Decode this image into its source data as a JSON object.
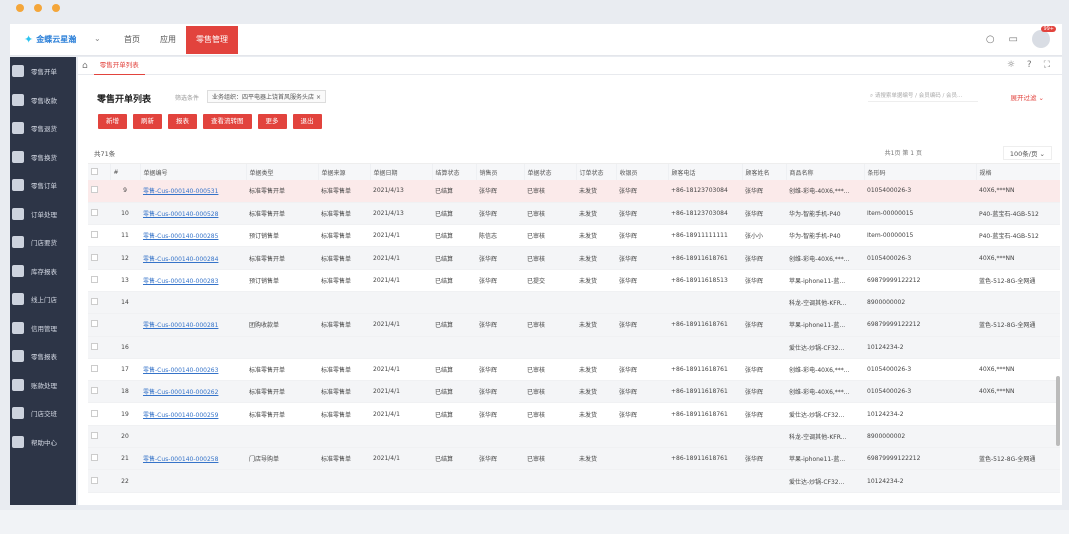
{
  "topbar": {
    "logo": "金蝶云星瀚",
    "nav": [
      "首页",
      "应用",
      "零售管理"
    ],
    "active_nav": 2,
    "notification_count": "99+"
  },
  "sidebar": {
    "items": [
      "零售开单",
      "零售收款",
      "零售退货",
      "零售换货",
      "零售订单",
      "订单处理",
      "门店要货",
      "库存报表",
      "线上门店",
      "信用管理",
      "零售报表",
      "账款处理",
      "门店交班",
      "帮助中心"
    ]
  },
  "tabs": {
    "active": "零售开单列表"
  },
  "page": {
    "title": "零售开单列表",
    "filter_label": "筛选条件",
    "filter_chip": "业务组织：四平电器上饶首风服务头店",
    "search_placeholder": "请搜索单据编号 / 会员编码 / 会员...",
    "expand_label": "展开过滤"
  },
  "toolbar": {
    "buttons": [
      "新增",
      "刷新",
      "报表",
      "查看流转图",
      "更多",
      "退出"
    ]
  },
  "list": {
    "total": "共71条",
    "pager_text": "共1页  第 1 页",
    "page_size": "100条/页"
  },
  "columns": [
    "",
    "#",
    "单据编号",
    "单据类型",
    "单据来源",
    "单据日期",
    "结算状态",
    "销售员",
    "单据状态",
    "订单状态",
    "收银员",
    "顾客电话",
    "顾客姓名",
    "商品名称",
    "条形码",
    "规格"
  ],
  "rows": [
    {
      "n": "9",
      "no": "零售-Cus-000140-000531",
      "type": "标准零售开单",
      "src": "标准零售单",
      "date": "2021/4/13",
      "settle": "已结算",
      "seller": "张华辉",
      "status": "已审核",
      "order": "未发货",
      "cashier": "张华辉",
      "phone": "+86-18123703084",
      "cust": "张华辉",
      "goods": "创维-彩电-40X6,***...",
      "code": "0105400026-3",
      "spec": "40X6,***NN",
      "style": "hl"
    },
    {
      "n": "10",
      "no": "零售-Cus-000140-000528",
      "type": "标准零售开单",
      "src": "标准零售单",
      "date": "2021/4/13",
      "settle": "已结算",
      "seller": "张华辉",
      "status": "已审核",
      "order": "未发货",
      "cashier": "张华辉",
      "phone": "+86-18123703084",
      "cust": "张华辉",
      "goods": "华为-智能手机-P40",
      "code": "Item-00000015",
      "spec": "P40-蓝宝石-4GB-512",
      "style": "stripe"
    },
    {
      "n": "11",
      "no": "零售-Cus-000140-000285",
      "type": "预订销售单",
      "src": "标准零售单",
      "date": "2021/4/1",
      "settle": "已结算",
      "seller": "陈信志",
      "status": "已审核",
      "order": "未发货",
      "cashier": "张华辉",
      "phone": "+86-18911111111",
      "cust": "张小小",
      "goods": "华为-智能手机-P40",
      "code": "Item-00000015",
      "spec": "P40-蓝宝石-4GB-512",
      "style": ""
    },
    {
      "n": "12",
      "no": "零售-Cus-000140-000284",
      "type": "标准零售开单",
      "src": "标准零售单",
      "date": "2021/4/1",
      "settle": "已结算",
      "seller": "张华辉",
      "status": "已审核",
      "order": "未发货",
      "cashier": "张华辉",
      "phone": "+86-18911618761",
      "cust": "张华辉",
      "goods": "创维-彩电-40X6,***...",
      "code": "0105400026-3",
      "spec": "40X6,***NN",
      "style": "stripe"
    },
    {
      "n": "13",
      "no": "零售-Cus-000140-000283",
      "type": "预订销售单",
      "src": "标准零售单",
      "date": "2021/4/1",
      "settle": "已结算",
      "seller": "张华辉",
      "status": "已提交",
      "order": "未发货",
      "cashier": "张华辉",
      "phone": "+86-18911618513",
      "cust": "张华辉",
      "goods": "苹果-iphone11-蓝...",
      "code": "69879999122212",
      "spec": "蓝色-512-8G-全网通",
      "style": ""
    },
    {
      "n": "14",
      "no": "",
      "type": "",
      "src": "",
      "date": "",
      "settle": "",
      "seller": "",
      "status": "",
      "order": "",
      "cashier": "",
      "phone": "",
      "cust": "",
      "goods": "科龙-空调其他-KFR...",
      "code": "8900000002",
      "spec": "",
      "style": "stripe"
    },
    {
      "n": "",
      "no": "零售-Cus-000140-000281",
      "type": "团购收款单",
      "src": "标准零售单",
      "date": "2021/4/1",
      "settle": "已结算",
      "seller": "张华辉",
      "status": "已审核",
      "order": "未发货",
      "cashier": "张华辉",
      "phone": "+86-18911618761",
      "cust": "张华辉",
      "goods": "苹果-iphone11-蓝...",
      "code": "69879999122212",
      "spec": "蓝色-512-8G-全网通",
      "style": "stripe"
    },
    {
      "n": "16",
      "no": "",
      "type": "",
      "src": "",
      "date": "",
      "settle": "",
      "seller": "",
      "status": "",
      "order": "",
      "cashier": "",
      "phone": "",
      "cust": "",
      "goods": "爱仕达-炒锅-CF32...",
      "code": "10124234-2",
      "spec": "",
      "style": "stripe"
    },
    {
      "n": "17",
      "no": "零售-Cus-000140-000263",
      "type": "标准零售开单",
      "src": "标准零售单",
      "date": "2021/4/1",
      "settle": "已结算",
      "seller": "张华辉",
      "status": "已审核",
      "order": "未发货",
      "cashier": "张华辉",
      "phone": "+86-18911618761",
      "cust": "张华辉",
      "goods": "创维-彩电-40X6,***...",
      "code": "0105400026-3",
      "spec": "40X6,***NN",
      "style": ""
    },
    {
      "n": "18",
      "no": "零售-Cus-000140-000262",
      "type": "标准零售开单",
      "src": "标准零售单",
      "date": "2021/4/1",
      "settle": "已结算",
      "seller": "张华辉",
      "status": "已审核",
      "order": "未发货",
      "cashier": "张华辉",
      "phone": "+86-18911618761",
      "cust": "张华辉",
      "goods": "创维-彩电-40X6,***...",
      "code": "0105400026-3",
      "spec": "40X6,***NN",
      "style": "stripe"
    },
    {
      "n": "19",
      "no": "零售-Cus-000140-000259",
      "type": "标准零售开单",
      "src": "标准零售单",
      "date": "2021/4/1",
      "settle": "已结算",
      "seller": "张华辉",
      "status": "已审核",
      "order": "未发货",
      "cashier": "张华辉",
      "phone": "+86-18911618761",
      "cust": "张华辉",
      "goods": "爱仕达-炒锅-CF32...",
      "code": "10124234-2",
      "spec": "",
      "style": ""
    },
    {
      "n": "20",
      "no": "",
      "type": "",
      "src": "",
      "date": "",
      "settle": "",
      "seller": "",
      "status": "",
      "order": "",
      "cashier": "",
      "phone": "",
      "cust": "",
      "goods": "科龙-空调其他-KFR...",
      "code": "8900000002",
      "spec": "",
      "style": "stripe"
    },
    {
      "n": "21",
      "no": "零售-Cus-000140-000258",
      "type": "门店导购单",
      "src": "标准零售单",
      "date": "2021/4/1",
      "settle": "已结算",
      "seller": "张华辉",
      "status": "已审核",
      "order": "未发货",
      "cashier": "",
      "phone": "+86-18911618761",
      "cust": "张华辉",
      "goods": "苹果-iphone11-蓝...",
      "code": "69879999122212",
      "spec": "蓝色-512-8G-全网通",
      "style": "stripe"
    },
    {
      "n": "22",
      "no": "",
      "type": "",
      "src": "",
      "date": "",
      "settle": "",
      "seller": "",
      "status": "",
      "order": "",
      "cashier": "",
      "phone": "",
      "cust": "",
      "goods": "爱仕达-炒锅-CF32...",
      "code": "10124234-2",
      "spec": "",
      "style": "stripe"
    }
  ]
}
